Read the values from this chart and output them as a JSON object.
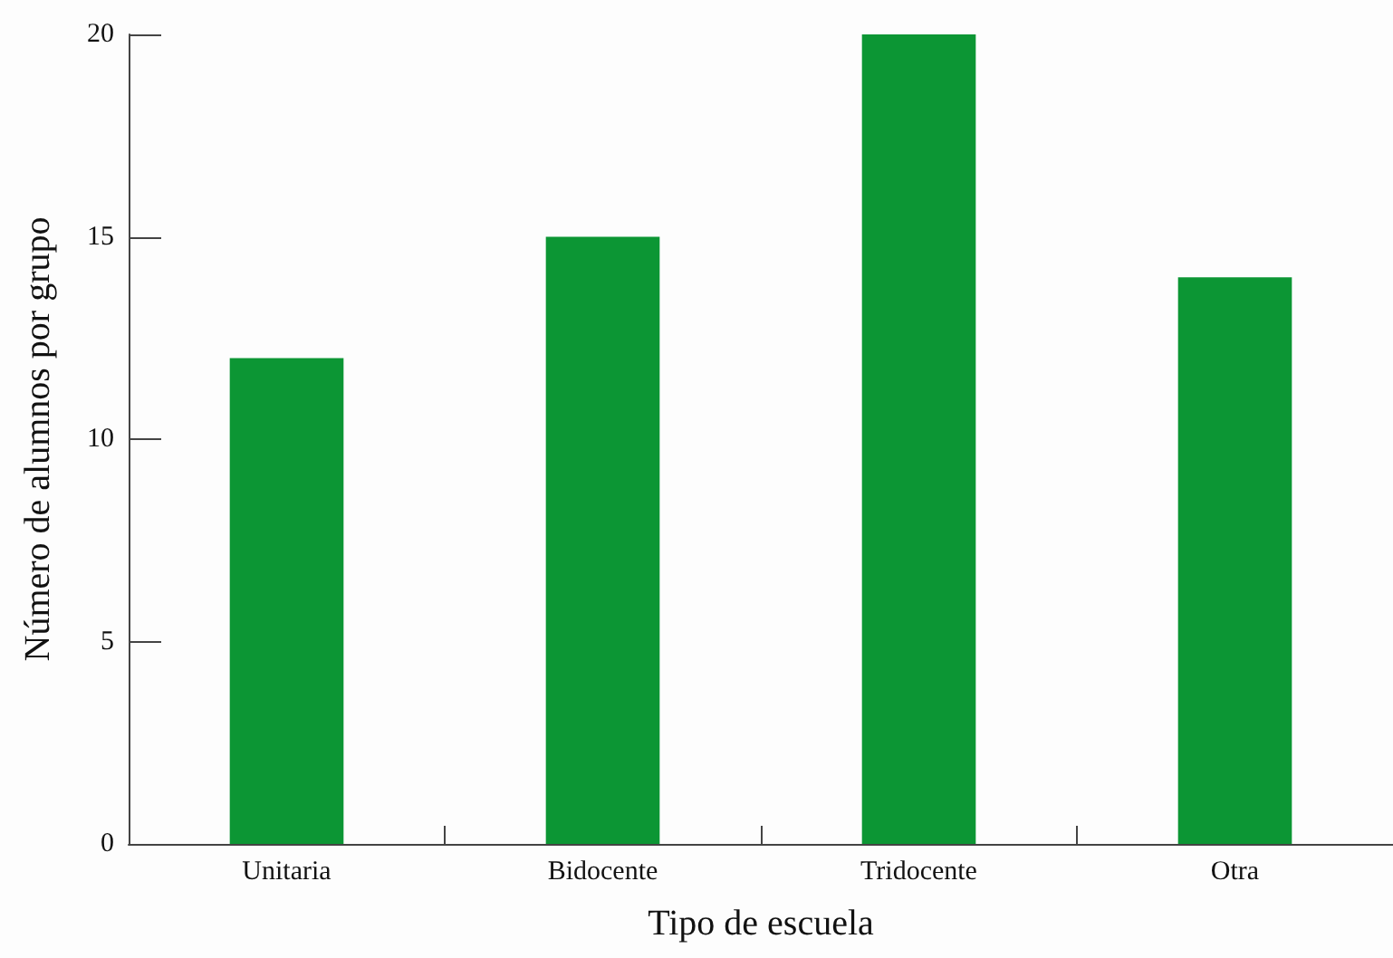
{
  "chart_data": {
    "type": "bar",
    "xlabel": "Tipo de escuela",
    "ylabel": "Número de alumnos por grupo",
    "categories": [
      "Unitaria",
      "Bidocente",
      "Tridocente",
      "Otra"
    ],
    "values": [
      12,
      15,
      20,
      14
    ],
    "color": "#0c9634",
    "ylim": [
      0,
      20
    ],
    "yticks": [
      0,
      5,
      10,
      15,
      20
    ],
    "grid": false
  }
}
